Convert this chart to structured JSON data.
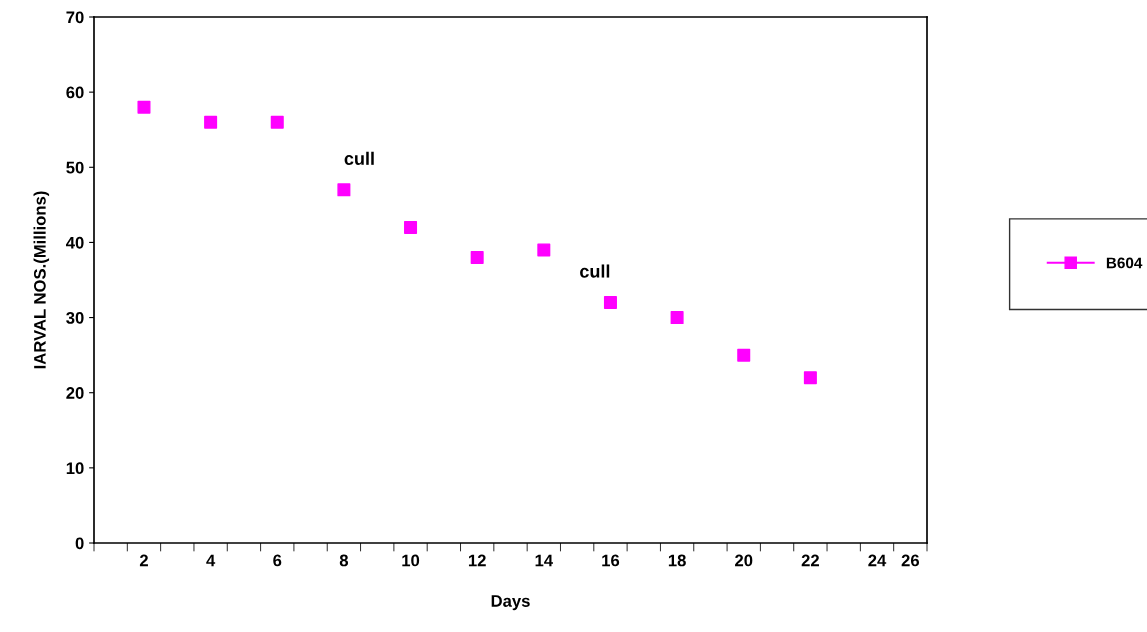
{
  "chart_data": {
    "type": "scatter",
    "xlabel": "Days",
    "ylabel": "IARVAL NOS.(Millions)",
    "categories": [
      null,
      "2",
      null,
      "4",
      null,
      "6",
      null,
      "8",
      null,
      "10",
      null,
      "12",
      null,
      "14",
      null,
      "16",
      null,
      "18",
      null,
      "20",
      null,
      "22",
      null,
      "24",
      "26"
    ],
    "series": [
      {
        "name": "B604",
        "color": "#ff00ff",
        "values": [
          null,
          58,
          null,
          56,
          null,
          56,
          null,
          47,
          null,
          42,
          null,
          38,
          null,
          39,
          null,
          32,
          null,
          30,
          null,
          25,
          null,
          22,
          null,
          null,
          null
        ]
      }
    ],
    "annotations": [
      {
        "text": "cull",
        "x": "8",
        "y": 47
      },
      {
        "text": "cull",
        "x": "16",
        "y": 32
      }
    ],
    "ylim": [
      0,
      70
    ],
    "yticks": [
      0,
      10,
      20,
      30,
      40,
      50,
      60,
      70
    ],
    "marker": "square",
    "legend": "right",
    "grid": false
  }
}
